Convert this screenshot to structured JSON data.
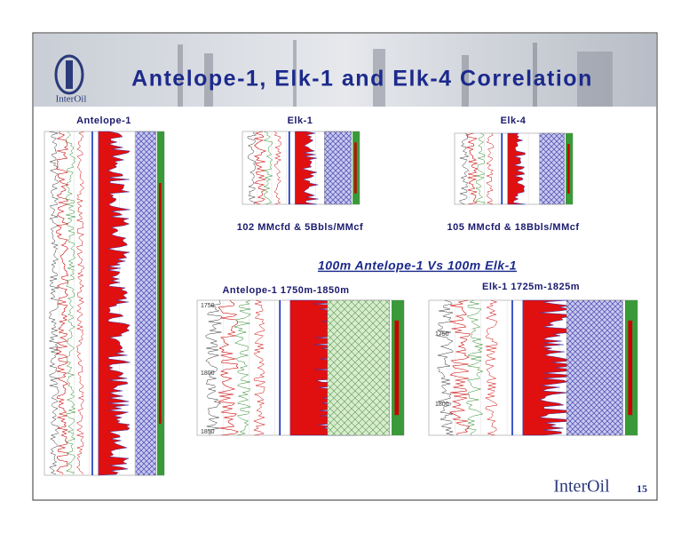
{
  "header": {
    "title": "Antelope-1, Elk-1 and Elk-4 Correlation",
    "logo": "InterOil"
  },
  "wells": [
    {
      "label": "Antelope-1"
    },
    {
      "label": "Elk-1",
      "rate": "102 MMcfd & 5Bbls/MMcf"
    },
    {
      "label": "Elk-4",
      "rate": "105 MMcfd & 18Bbls/MMcf"
    }
  ],
  "comparison": {
    "title": "100m Antelope-1 Vs 100m Elk-1",
    "panels": [
      {
        "label": "Antelope-1 1750m-1850m",
        "depths": [
          "1750",
          "1800",
          "1850"
        ]
      },
      {
        "label": "Elk-1 1725m-1825m",
        "depths": [
          "1750",
          "1800"
        ]
      }
    ]
  },
  "footer": {
    "logo": "InterOil",
    "page_number": "15"
  }
}
